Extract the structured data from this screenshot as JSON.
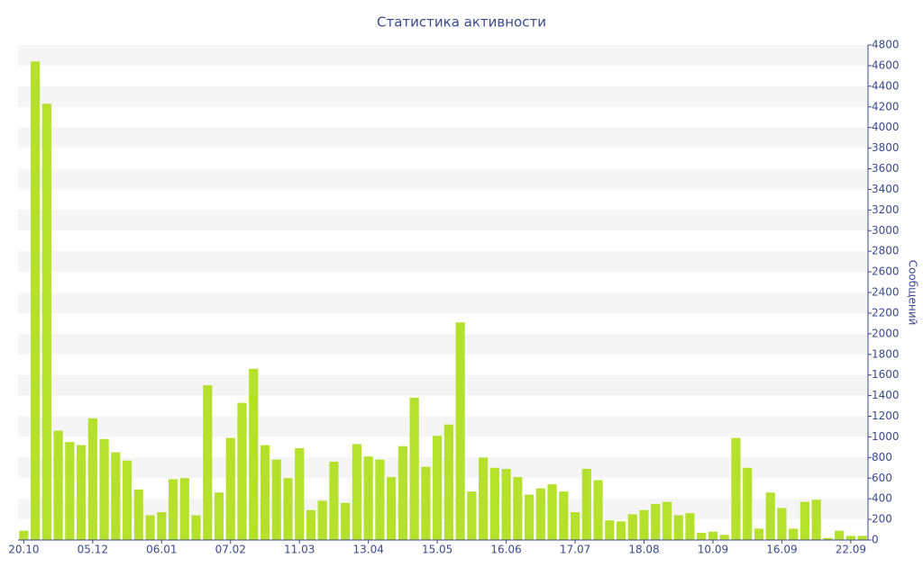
{
  "chart_data": {
    "type": "bar",
    "title": "Статистика активности",
    "y_label": "Сообщений",
    "color": "#b5e02c",
    "categories": [
      "20.10",
      null,
      null,
      null,
      null,
      null,
      "05.12",
      null,
      null,
      null,
      null,
      null,
      "06.01",
      null,
      null,
      null,
      null,
      null,
      "07.02",
      null,
      null,
      null,
      null,
      null,
      "11.03",
      null,
      null,
      null,
      null,
      null,
      "13.04",
      null,
      null,
      null,
      null,
      null,
      "15.05",
      null,
      null,
      null,
      null,
      null,
      "16.06",
      null,
      null,
      null,
      null,
      null,
      "17.07",
      null,
      null,
      null,
      null,
      null,
      "18.08",
      null,
      null,
      null,
      null,
      null,
      "10.09",
      null,
      null,
      null,
      null,
      null,
      "16.09",
      null,
      null,
      null,
      null,
      null,
      "22.09",
      null
    ],
    "values": [
      90,
      4640,
      4230,
      1060,
      950,
      920,
      1180,
      980,
      850,
      770,
      490,
      240,
      270,
      590,
      600,
      240,
      1500,
      460,
      990,
      1330,
      1660,
      920,
      780,
      600,
      890,
      290,
      380,
      760,
      360,
      930,
      810,
      780,
      610,
      910,
      1380,
      710,
      1010,
      1120,
      2110,
      470,
      800,
      700,
      690,
      610,
      440,
      500,
      540,
      470,
      270,
      690,
      580,
      190,
      180,
      250,
      290,
      350,
      370,
      240,
      260,
      70,
      80,
      50,
      990,
      700,
      110,
      460,
      310,
      110,
      370,
      390,
      20,
      90,
      40,
      40
    ],
    "ylim": [
      0,
      4800
    ],
    "yticks": [
      0,
      200,
      400,
      600,
      800,
      1000,
      1200,
      1400,
      1600,
      1800,
      2000,
      2200,
      2400,
      2600,
      2800,
      3000,
      3200,
      3400,
      3600,
      3800,
      4000,
      4200,
      4400,
      4600,
      4800
    ],
    "grid": true
  }
}
